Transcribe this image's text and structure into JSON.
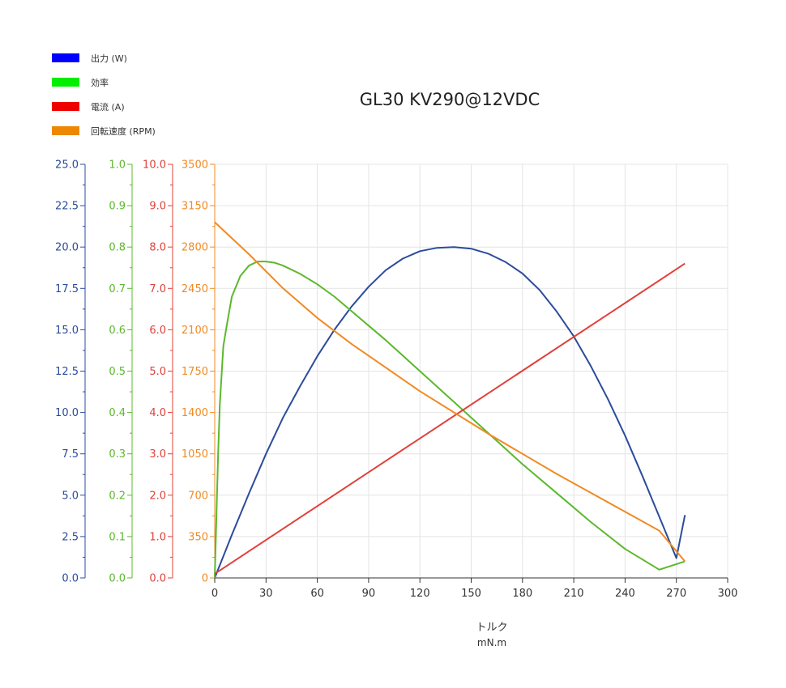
{
  "chart_data": {
    "type": "line",
    "title": "GL30 KV290@12VDC",
    "xlabel": "トルク",
    "xunit": "mN.m",
    "xlim": [
      0,
      300
    ],
    "xticks": [
      0,
      30,
      60,
      90,
      120,
      150,
      180,
      210,
      240,
      270,
      300
    ],
    "grid": true,
    "legend_position": "top-left",
    "axes": [
      {
        "key": "power",
        "color": "#2b4c9b",
        "min": 0,
        "max": 25,
        "ticks": [
          "0.0",
          "2.5",
          "5.0",
          "7.5",
          "10.0",
          "12.5",
          "15.0",
          "17.5",
          "20.0",
          "22.5",
          "25.0"
        ]
      },
      {
        "key": "efficiency",
        "color": "#5cb82d",
        "min": 0,
        "max": 1,
        "ticks": [
          "0.0",
          "0.1",
          "0.2",
          "0.3",
          "0.4",
          "0.5",
          "0.6",
          "0.7",
          "0.8",
          "0.9",
          "1.0"
        ]
      },
      {
        "key": "current",
        "color": "#e0413a",
        "min": 0,
        "max": 10,
        "ticks": [
          "0.0",
          "1.0",
          "2.0",
          "3.0",
          "4.0",
          "5.0",
          "6.0",
          "7.0",
          "8.0",
          "9.0",
          "10.0"
        ]
      },
      {
        "key": "speed",
        "color": "#f08a24",
        "min": 0,
        "max": 3500,
        "ticks": [
          "0",
          "350",
          "700",
          "1050",
          "1400",
          "1750",
          "2100",
          "2450",
          "2800",
          "3150",
          "3500"
        ]
      }
    ],
    "series": [
      {
        "name": "出力 (W)",
        "axis": "power",
        "color": "#2b4c9b",
        "legend_color": "#0000ff",
        "x": [
          0,
          10,
          20,
          30,
          40,
          50,
          60,
          70,
          80,
          90,
          100,
          110,
          120,
          130,
          140,
          150,
          160,
          170,
          180,
          190,
          200,
          210,
          220,
          230,
          240,
          250,
          260,
          270,
          275
        ],
        "y": [
          0,
          2.6,
          5.1,
          7.5,
          9.7,
          11.6,
          13.4,
          15.0,
          16.4,
          17.6,
          18.6,
          19.3,
          19.75,
          19.95,
          20.0,
          19.9,
          19.6,
          19.1,
          18.4,
          17.4,
          16.1,
          14.6,
          12.8,
          10.8,
          8.6,
          6.2,
          3.7,
          1.2,
          3.8
        ]
      },
      {
        "name": "効率",
        "axis": "efficiency",
        "color": "#5cb82d",
        "legend_color": "#00ee00",
        "x": [
          0,
          1,
          2,
          3,
          5,
          7,
          10,
          15,
          20,
          25,
          30,
          35,
          40,
          50,
          60,
          70,
          80,
          90,
          100,
          120,
          140,
          160,
          180,
          200,
          220,
          240,
          260,
          275
        ],
        "y": [
          0,
          0.15,
          0.3,
          0.42,
          0.56,
          0.61,
          0.68,
          0.73,
          0.755,
          0.765,
          0.765,
          0.762,
          0.755,
          0.735,
          0.71,
          0.68,
          0.645,
          0.61,
          0.575,
          0.5,
          0.425,
          0.35,
          0.275,
          0.205,
          0.135,
          0.07,
          0.02,
          0.04
        ]
      },
      {
        "name": "電流 (A)",
        "axis": "current",
        "color": "#e0413a",
        "legend_color": "#ee0000",
        "x": [
          0,
          275
        ],
        "y": [
          0.1,
          7.6
        ]
      },
      {
        "name": "回転速度 (RPM)",
        "axis": "speed",
        "color": "#f08a24",
        "legend_color": "#ee8800",
        "x": [
          0,
          20,
          40,
          60,
          80,
          100,
          120,
          140,
          160,
          180,
          200,
          220,
          240,
          260,
          275
        ],
        "y": [
          3010,
          2740,
          2450,
          2200,
          1980,
          1780,
          1580,
          1400,
          1220,
          1050,
          880,
          720,
          560,
          400,
          140
        ]
      }
    ]
  }
}
